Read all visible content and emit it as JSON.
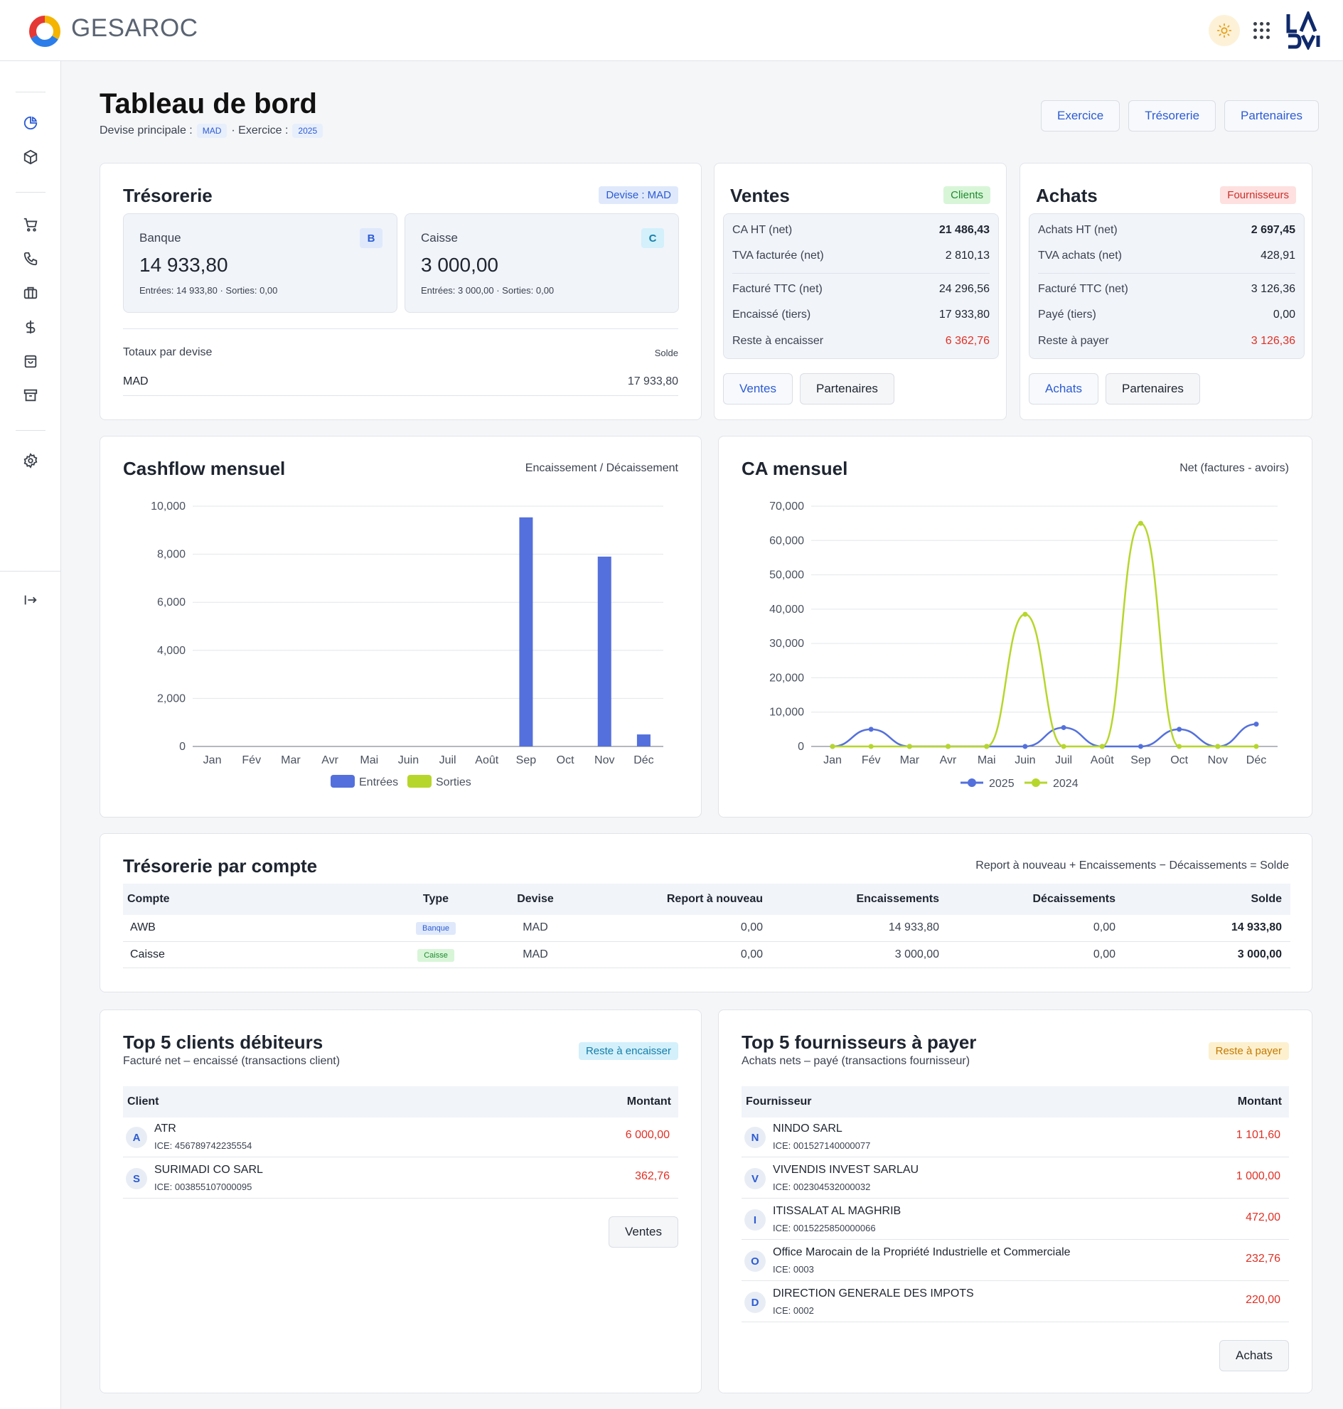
{
  "header": {
    "brand": "GESAROC"
  },
  "page": {
    "title": "Tableau de bord",
    "currency_label": "Devise principale :",
    "currency": "MAD",
    "exercise_label": "· Exercice :",
    "exercise": "2025"
  },
  "top_buttons": [
    "Exercice",
    "Trésorerie",
    "Partenaires"
  ],
  "tresorerie": {
    "title": "Trésorerie",
    "badge": "Devise : MAD",
    "banque": {
      "label": "Banque",
      "tag": "B",
      "value": "14 933,80",
      "sub": "Entrées: 14 933,80 · Sorties: 0,00"
    },
    "caisse": {
      "label": "Caisse",
      "tag": "C",
      "value": "3 000,00",
      "sub": "Entrées: 3 000,00 · Sorties: 0,00"
    },
    "totals_label": "Totaux par devise",
    "solde_label": "Solde",
    "currency": "MAD",
    "total": "17 933,80"
  },
  "ventes": {
    "title": "Ventes",
    "badge": "Clients",
    "rows": [
      {
        "k": "CA HT (net)",
        "v": "21 486,43"
      },
      {
        "k": "TVA facturée (net)",
        "v": "2 810,13"
      },
      {
        "k": "Facturé TTC (net)",
        "v": "24 296,56"
      },
      {
        "k": "Encaissé (tiers)",
        "v": "17 933,80"
      },
      {
        "k": "Reste à encaisser",
        "v": "6 362,76"
      }
    ],
    "btn1": "Ventes",
    "btn2": "Partenaires"
  },
  "achats": {
    "title": "Achats",
    "badge": "Fournisseurs",
    "rows": [
      {
        "k": "Achats HT (net)",
        "v": "2 697,45"
      },
      {
        "k": "TVA achats (net)",
        "v": "428,91"
      },
      {
        "k": "Facturé TTC (net)",
        "v": "3 126,36"
      },
      {
        "k": "Payé (tiers)",
        "v": "0,00"
      },
      {
        "k": "Reste à payer",
        "v": "3 126,36"
      }
    ],
    "btn1": "Achats",
    "btn2": "Partenaires"
  },
  "cashflow": {
    "title": "Cashflow mensuel",
    "subtitle": "Encaissement / Décaissement"
  },
  "ca_mensuel": {
    "title": "CA mensuel",
    "subtitle": "Net (factures - avoirs)"
  },
  "chart_data": [
    {
      "type": "bar",
      "categories": [
        "Jan",
        "Fév",
        "Mar",
        "Avr",
        "Mai",
        "Juin",
        "Juil",
        "Août",
        "Sep",
        "Oct",
        "Nov",
        "Déc"
      ],
      "series": [
        {
          "name": "Entrées",
          "color": "#5470dc",
          "values": [
            0,
            0,
            0,
            0,
            0,
            0,
            0,
            0,
            9534,
            0,
            7900,
            500
          ]
        },
        {
          "name": "Sorties",
          "color": "#b6d62c",
          "values": [
            0,
            0,
            0,
            0,
            0,
            0,
            0,
            0,
            0,
            0,
            0,
            0
          ]
        }
      ],
      "ylim": [
        0,
        10000
      ],
      "yticks": [
        "0",
        "2,000",
        "4,000",
        "6,000",
        "8,000",
        "10,000"
      ],
      "legend": "bottom"
    },
    {
      "type": "line",
      "categories": [
        "Jan",
        "Fév",
        "Mar",
        "Avr",
        "Mai",
        "Juin",
        "Juil",
        "Août",
        "Sep",
        "Oct",
        "Nov",
        "Déc"
      ],
      "series": [
        {
          "name": "2025",
          "color": "#5470dc",
          "values": [
            0,
            5000,
            0,
            0,
            0,
            0,
            5500,
            0,
            0,
            5000,
            0,
            6500
          ]
        },
        {
          "name": "2024",
          "color": "#b6d62c",
          "values": [
            0,
            0,
            0,
            0,
            0,
            38500,
            0,
            0,
            65000,
            0,
            0,
            0
          ]
        }
      ],
      "ylim": [
        0,
        70000
      ],
      "yticks": [
        "0",
        "10,000",
        "20,000",
        "30,000",
        "40,000",
        "50,000",
        "60,000",
        "70,000"
      ],
      "legend": "bottom"
    }
  ],
  "tresorerie_compte": {
    "title": "Trésorerie par compte",
    "formula": "Report à nouveau + Encaissements − Décaissements = Solde",
    "headers": [
      "Compte",
      "Type",
      "Devise",
      "Report à nouveau",
      "Encaissements",
      "Décaissements",
      "Solde"
    ],
    "rows": [
      {
        "compte": "AWB",
        "type": "Banque",
        "devise": "MAD",
        "report": "0,00",
        "enc": "14 933,80",
        "dec": "0,00",
        "solde": "14 933,80"
      },
      {
        "compte": "Caisse",
        "type": "Caisse",
        "devise": "MAD",
        "report": "0,00",
        "enc": "3 000,00",
        "dec": "0,00",
        "solde": "3 000,00"
      }
    ]
  },
  "top_clients": {
    "title": "Top 5 clients débiteurs",
    "subtitle": "Facturé net – encaissé (transactions client)",
    "badge": "Reste à encaisser",
    "col1": "Client",
    "col2": "Montant",
    "rows": [
      {
        "initial": "A",
        "name": "ATR",
        "ice": "ICE: 456789742235554",
        "amount": "6 000,00"
      },
      {
        "initial": "S",
        "name": "SURIMADI CO SARL",
        "ice": "ICE: 003855107000095",
        "amount": "362,76"
      }
    ],
    "button": "Ventes"
  },
  "top_fournisseurs": {
    "title": "Top 5 fournisseurs à payer",
    "subtitle": "Achats nets – payé (transactions fournisseur)",
    "badge": "Reste à payer",
    "col1": "Fournisseur",
    "col2": "Montant",
    "rows": [
      {
        "initial": "N",
        "name": "NINDO SARL",
        "ice": "ICE: 001527140000077",
        "amount": "1 101,60"
      },
      {
        "initial": "V",
        "name": "VIVENDIS INVEST SARLAU",
        "ice": "ICE: 002304532000032",
        "amount": "1 000,00"
      },
      {
        "initial": "I",
        "name": "ITISSALAT AL MAGHRIB",
        "ice": "ICE: 0015225850000066",
        "amount": "472,00"
      },
      {
        "initial": "O",
        "name": "Office Marocain de la Propriété Industrielle et Commerciale",
        "ice": "ICE: 0003",
        "amount": "232,76"
      },
      {
        "initial": "D",
        "name": "DIRECTION GENERALE DES IMPOTS",
        "ice": "ICE: 0002",
        "amount": "220,00"
      }
    ],
    "button": "Achats"
  }
}
